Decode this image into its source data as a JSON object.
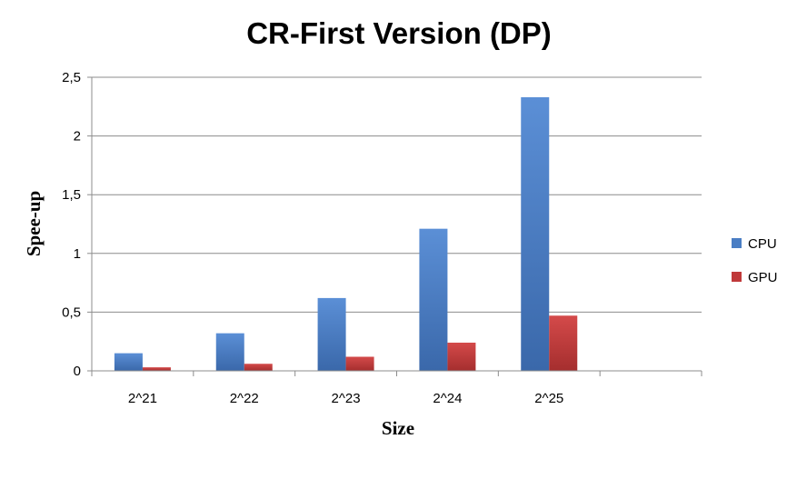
{
  "chart_data": {
    "type": "bar",
    "title": "CR-First Version (DP)",
    "xlabel": "Size",
    "ylabel": "Spee-up",
    "categories": [
      "2^21",
      "2^22",
      "2^23",
      "2^24",
      "2^25",
      ""
    ],
    "series": [
      {
        "name": "CPU",
        "color": "#4A7EC4",
        "values": [
          0.15,
          0.32,
          0.62,
          1.21,
          2.33,
          null
        ]
      },
      {
        "name": "GPU",
        "color": "#C0393A",
        "values": [
          0.03,
          0.06,
          0.12,
          0.24,
          0.47,
          null
        ]
      }
    ],
    "ylim": [
      0,
      2.5
    ],
    "yticks": [
      "0",
      "0,5",
      "1",
      "1,5",
      "2",
      "2,5"
    ],
    "grid": true,
    "legend_position": "right"
  }
}
